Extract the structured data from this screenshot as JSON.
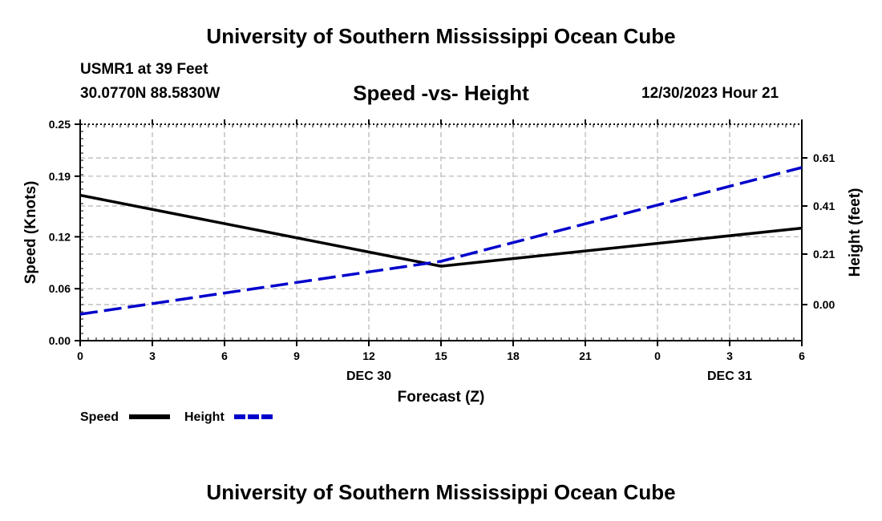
{
  "header": {
    "title": "University of Southern Mississippi Ocean Cube",
    "station": "USMR1 at 39 Feet",
    "coordinates": "30.0770N  88.5830W",
    "subtitle": "Speed -vs- Height",
    "datetime": "12/30/2023 Hour 21"
  },
  "footer": {
    "title": "University of Southern Mississippi Ocean Cube"
  },
  "chart_data": {
    "type": "line",
    "title": "Speed -vs- Height",
    "xlabel": "Forecast (Z)",
    "ylabel": "Speed (Knots)",
    "y2label": "Height (feet)",
    "x_ticks": [
      "0",
      "3",
      "6",
      "9",
      "12",
      "15",
      "18",
      "21",
      "0",
      "3",
      "6"
    ],
    "date_labels": [
      {
        "label": "DEC 30",
        "at_index": 4
      },
      {
        "label": "DEC 31",
        "at_index": 9
      }
    ],
    "x_hours": [
      0,
      15,
      30
    ],
    "xlim": [
      0,
      30
    ],
    "ylim": [
      0,
      0.25
    ],
    "y_ticks": [
      0.0,
      0.06,
      0.12,
      0.19,
      0.25
    ],
    "y_tick_labels": [
      "0.00",
      "0.06",
      "0.12",
      "0.19",
      "0.25"
    ],
    "y2lim": [
      -0.15,
      0.75
    ],
    "y2_ticks": [
      0.0,
      0.21,
      0.41,
      0.61
    ],
    "y2_tick_labels": [
      "0.00",
      "0.21",
      "0.41",
      "0.61"
    ],
    "grid": true,
    "series": [
      {
        "name": "Speed",
        "axis": "left",
        "color": "#000000",
        "style": "solid",
        "x": [
          0,
          15,
          30
        ],
        "values": [
          0.168,
          0.086,
          0.13
        ]
      },
      {
        "name": "Height",
        "axis": "right",
        "color": "#0000cc",
        "style": "dashed",
        "x": [
          0,
          15,
          30
        ],
        "values": [
          -0.04,
          0.18,
          0.57
        ]
      }
    ],
    "legend": [
      {
        "label": "Speed",
        "color": "#000000",
        "style": "solid"
      },
      {
        "label": "Height",
        "color": "#0000cc",
        "style": "dashed"
      }
    ]
  }
}
